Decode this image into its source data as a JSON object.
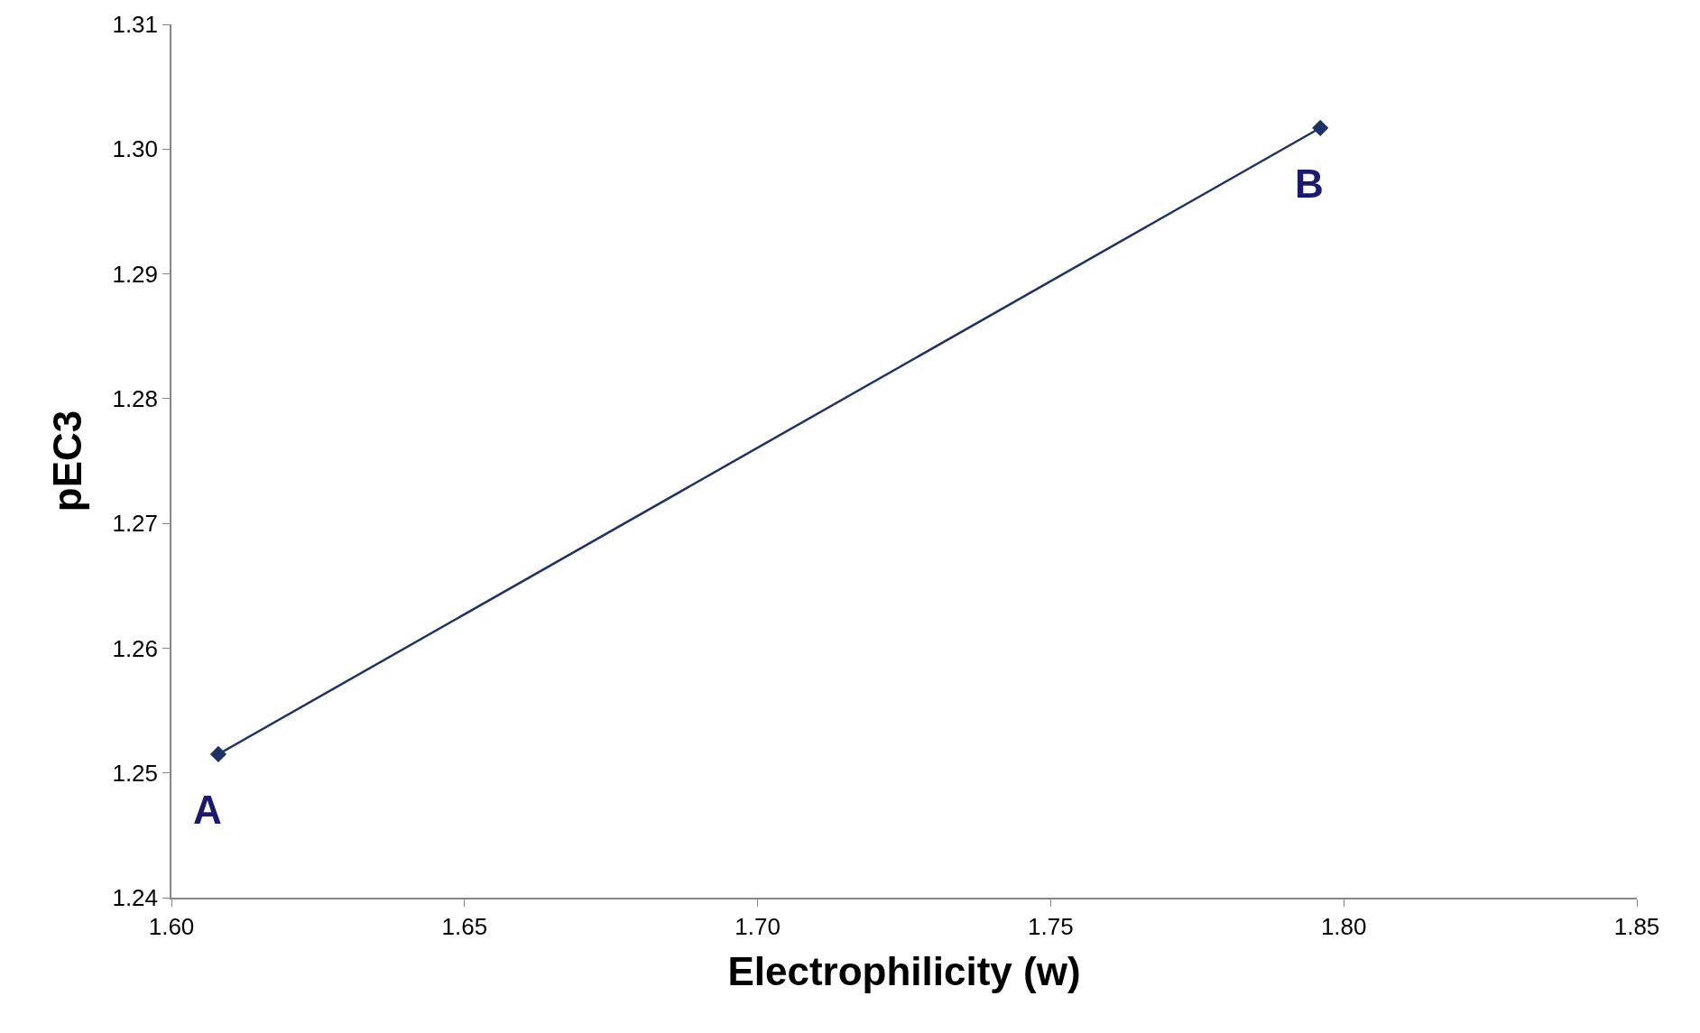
{
  "chart_data": {
    "type": "line",
    "xlabel": "Electrophilicity (w)",
    "ylabel": "pEC3",
    "x": [
      1.608,
      1.796
    ],
    "series": [
      {
        "color": "#1f3264",
        "values": [
          1.2515,
          1.3017
        ]
      }
    ],
    "marker": "diamond",
    "line_style": "solid",
    "xlim": [
      1.6,
      1.85
    ],
    "xticks": [
      {
        "value": 1.6,
        "label": "1.60"
      },
      {
        "value": 1.65,
        "label": "1.65"
      },
      {
        "value": 1.7,
        "label": "1.70"
      },
      {
        "value": 1.75,
        "label": "1.75"
      },
      {
        "value": 1.8,
        "label": "1.80"
      },
      {
        "value": 1.85,
        "label": "1.85"
      }
    ],
    "ylim": [
      1.24,
      1.31
    ],
    "yticks": [
      {
        "value": 1.24,
        "label": "1.24"
      },
      {
        "value": 1.25,
        "label": "1.25"
      },
      {
        "value": 1.26,
        "label": "1.26"
      },
      {
        "value": 1.27,
        "label": "1.27"
      },
      {
        "value": 1.28,
        "label": "1.28"
      },
      {
        "value": 1.29,
        "label": "1.29"
      },
      {
        "value": 1.3,
        "label": "1.30"
      },
      {
        "value": 1.31,
        "label": "1.31"
      }
    ],
    "annotations": [
      {
        "text": "A",
        "x": 1.608,
        "y": 1.2515
      },
      {
        "text": "B",
        "x": 1.796,
        "y": 1.3017
      }
    ]
  }
}
